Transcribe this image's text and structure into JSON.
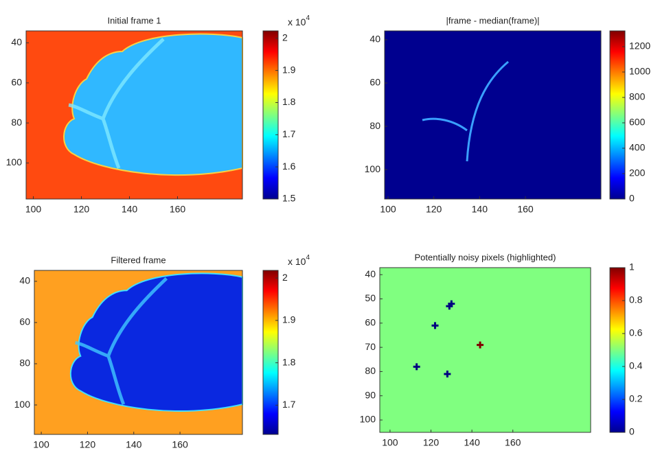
{
  "chart_data": [
    {
      "type": "image",
      "title": "Initial frame 1",
      "xlim": [
        97,
        187
      ],
      "ylim": [
        118,
        34
      ],
      "xticks": [
        100,
        120,
        140,
        160
      ],
      "yticks": [
        40,
        60,
        80,
        100
      ],
      "colormap": "jet",
      "colorbar": {
        "clim": [
          1.5,
          2.023
        ],
        "ticks": [
          1.5,
          1.6,
          1.7,
          1.8,
          1.9,
          2
        ],
        "scale": "x 10",
        "exponent": 4
      }
    },
    {
      "type": "image",
      "title": "|frame - median(frame)|",
      "xlim": [
        98.5,
        193
      ],
      "ylim": [
        113.6,
        35.9
      ],
      "xticks": [
        100,
        120,
        140,
        160
      ],
      "yticks": [
        40,
        60,
        80,
        100
      ],
      "colormap": "jet",
      "colorbar": {
        "clim": [
          0,
          1324
        ],
        "ticks": [
          0,
          200,
          400,
          600,
          800,
          1000,
          1200
        ]
      }
    },
    {
      "type": "image",
      "title": "Filtered frame",
      "xlim": [
        97,
        187
      ],
      "ylim": [
        114.3,
        34.7
      ],
      "xticks": [
        100,
        120,
        140,
        160
      ],
      "yticks": [
        40,
        60,
        80,
        100
      ],
      "colormap": "jet",
      "colorbar": {
        "clim": [
          1.631,
          2.018
        ],
        "ticks": [
          1.7,
          1.8,
          1.9,
          2
        ],
        "scale": "x 10",
        "exponent": 4
      }
    },
    {
      "type": "scatter",
      "title": "Potentially noisy pixels (highlighted)",
      "xlim": [
        95,
        198
      ],
      "ylim": [
        105.1,
        37.1
      ],
      "xticks": [
        100,
        120,
        140,
        160
      ],
      "yticks": [
        40,
        50,
        60,
        70,
        80,
        90,
        100
      ],
      "colormap": "jet",
      "colorbar": {
        "clim": [
          0,
          1
        ],
        "ticks": [
          0,
          0.2,
          0.4,
          0.6,
          0.8,
          1
        ]
      },
      "x": [
        113,
        122,
        128,
        129,
        130,
        144
      ],
      "y": [
        78,
        61,
        81,
        53,
        52,
        69
      ],
      "c": [
        0,
        0,
        0,
        0,
        0,
        1
      ]
    }
  ]
}
